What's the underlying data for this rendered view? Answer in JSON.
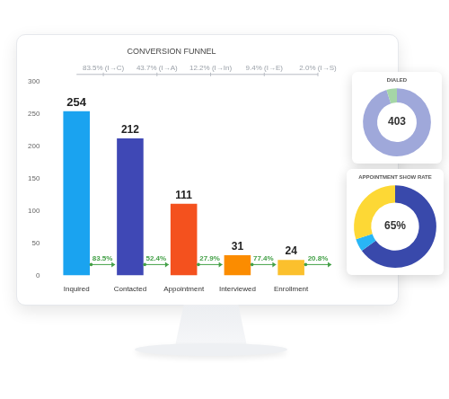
{
  "chart_data": [
    {
      "type": "bar",
      "title": "CONVERSION FUNNEL",
      "categories": [
        "Inquired",
        "Contacted",
        "Appointment",
        "Interviewed",
        "Enrollment"
      ],
      "values": [
        254,
        212,
        111,
        31,
        24
      ],
      "colors": [
        "#1aa3f0",
        "#3f48b5",
        "#f4511e",
        "#fb8c00",
        "#fbc02d"
      ],
      "ylim": [
        0,
        300
      ],
      "yticks": [
        0,
        50,
        100,
        150,
        200,
        250,
        300
      ],
      "grid": false,
      "data_labels": true,
      "step_labels": [
        "83.5%",
        "52.4%",
        "27.9%",
        "77.4%",
        "20.8%"
      ],
      "cumulative_labels": [
        "83.5% (I→C)",
        "43.7% (I→A)",
        "12.2% (I→In)",
        "9.4% (I→E)",
        "2.0% (I→S)"
      ]
    },
    {
      "type": "doughnut",
      "title": "DIALED",
      "categories": [
        null,
        null
      ],
      "values": [
        383,
        20
      ],
      "colors": [
        "#9fa8da",
        "#a5d6a7"
      ],
      "center_label": "403"
    },
    {
      "type": "doughnut",
      "title": "APPOINTMENT SHOW RATE",
      "categories": [
        null,
        null,
        null
      ],
      "values": [
        65,
        5,
        30
      ],
      "colors": [
        "#3949ab",
        "#29b6f6",
        "#fdd835"
      ],
      "center_label": "65%"
    }
  ]
}
